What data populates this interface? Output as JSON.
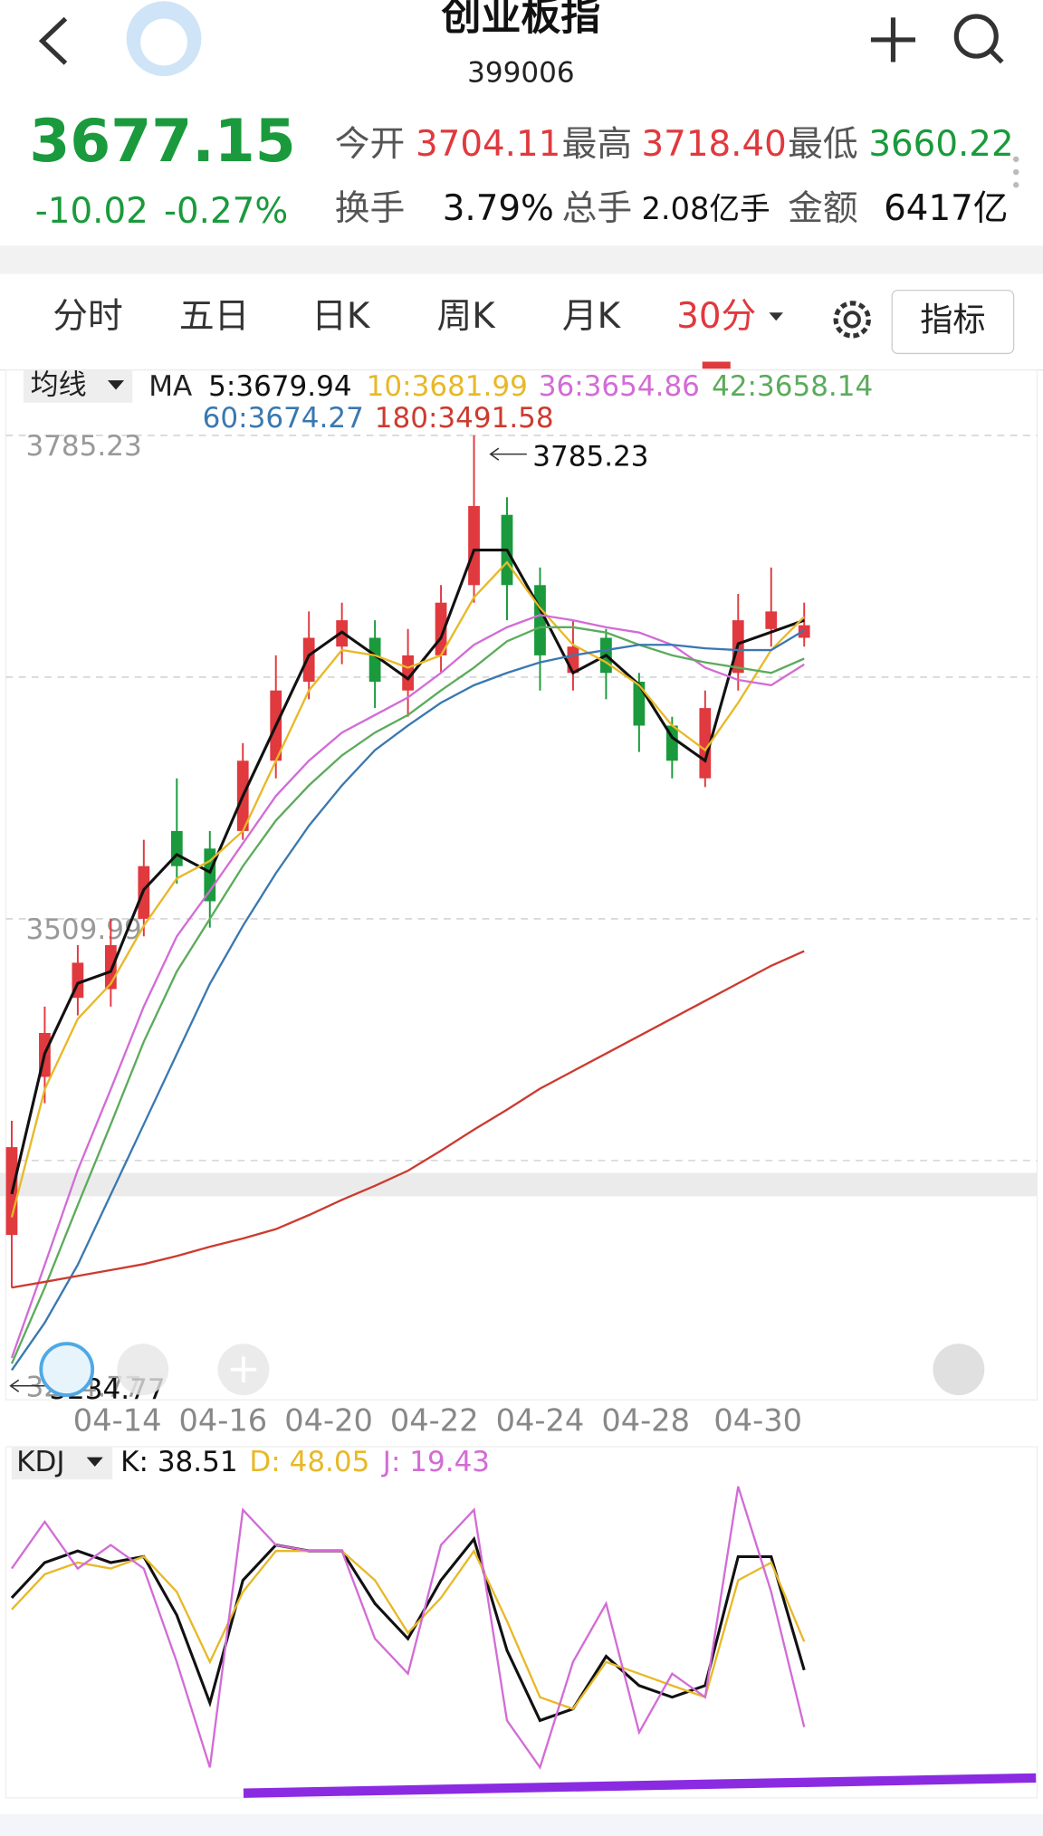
{
  "header": {
    "title": "创业板指",
    "code": "399006"
  },
  "quote": {
    "price": "3677.15",
    "change": "-10.02",
    "change_pct": "-0.27%",
    "color": "#1a9a3c",
    "stats": [
      {
        "label": "今开",
        "value": "3704.11",
        "color": "#e0393e"
      },
      {
        "label": "最高",
        "value": "3718.40",
        "color": "#e0393e"
      },
      {
        "label": "最低",
        "value": "3660.22",
        "color": "#1a9a3c"
      },
      {
        "label": "换手",
        "value": "3.79%",
        "color": "#111111"
      },
      {
        "label": "总手",
        "value": "2.08亿手",
        "color": "#111111"
      },
      {
        "label": "金额",
        "value": "6417亿",
        "color": "#111111"
      }
    ]
  },
  "tabs": [
    "分时",
    "五日",
    "日K",
    "周K",
    "月K",
    "30分"
  ],
  "active_tab": 5,
  "indicator_button": "指标",
  "chart_data": [
    {
      "type": "candlestick",
      "legend_title": "均线",
      "legend_prefix": "MA",
      "x": [
        0,
        5,
        10,
        15,
        20,
        25,
        30,
        35,
        40,
        45,
        50,
        55,
        60,
        65,
        70,
        75,
        80,
        85,
        90,
        95,
        100,
        105,
        110,
        115,
        120
      ],
      "xlim": [
        0,
        120
      ],
      "xticks": [
        {
          "value": 16,
          "label": "04-14"
        },
        {
          "value": 32,
          "label": "04-16"
        },
        {
          "value": 48,
          "label": "04-20"
        },
        {
          "value": 64,
          "label": "04-22"
        },
        {
          "value": 80,
          "label": "04-24"
        },
        {
          "value": 96,
          "label": "04-28"
        },
        {
          "value": 113,
          "label": "04-30"
        }
      ],
      "ylim": [
        3234.77,
        3785.23
      ],
      "yticks": [
        3785.23,
        3509.99,
        3234.77
      ],
      "grid": true,
      "high_label": "3785.23",
      "low_label": "3234.77",
      "candles": {
        "up_color": "#e0393e",
        "down_color": "#1a9a3c",
        "open": [
          3330,
          3420,
          3465,
          3470,
          3510,
          3560,
          3550,
          3560,
          3600,
          3645,
          3665,
          3670,
          3640,
          3660,
          3700,
          3740,
          3700,
          3650,
          3670,
          3645,
          3620,
          3590,
          3650,
          3675,
          3670
        ],
        "close": [
          3380,
          3445,
          3485,
          3495,
          3540,
          3540,
          3520,
          3600,
          3640,
          3670,
          3680,
          3645,
          3660,
          3690,
          3745,
          3700,
          3660,
          3665,
          3650,
          3620,
          3600,
          3630,
          3680,
          3685,
          3677.15
        ],
        "high": [
          3395,
          3460,
          3495,
          3510,
          3555,
          3590,
          3560,
          3610,
          3660,
          3685,
          3690,
          3680,
          3675,
          3700,
          3785.23,
          3750,
          3710,
          3680,
          3675,
          3650,
          3625,
          3640,
          3695,
          3710,
          3690
        ],
        "low": [
          3300,
          3405,
          3455,
          3460,
          3500,
          3530,
          3505,
          3555,
          3590,
          3635,
          3655,
          3630,
          3625,
          3650,
          3690,
          3680,
          3640,
          3640,
          3635,
          3605,
          3590,
          3585,
          3640,
          3665,
          3665
        ]
      },
      "series": [
        {
          "name": "5:3679.94",
          "color": "#111111",
          "values": [
            3353.3,
            3433.3,
            3473.3,
            3480,
            3526.6,
            3546.6,
            3536.6,
            3580,
            3620,
            3660,
            3673.3,
            3660,
            3646.6,
            3670,
            3720,
            3720,
            3686.6,
            3650,
            3660,
            3643.3,
            3613.3,
            3600,
            3666.6,
            3673.3,
            3679.94
          ]
        },
        {
          "name": "10:3681.99",
          "color": "#e8b827",
          "values": [
            3340,
            3413,
            3453,
            3473,
            3506,
            3533,
            3543,
            3560,
            3600,
            3640,
            3663,
            3660,
            3653,
            3660,
            3693,
            3713,
            3687,
            3666,
            3656,
            3643,
            3620,
            3606,
            3633,
            3663,
            3681.99
          ]
        },
        {
          "name": "36:3654.86",
          "color": "#d26cd6",
          "values": [
            3260,
            3313,
            3367,
            3413,
            3460,
            3500,
            3526,
            3553,
            3580,
            3600,
            3616,
            3626,
            3636,
            3650,
            3666,
            3676,
            3683,
            3680,
            3676,
            3673,
            3666,
            3653,
            3646,
            3643,
            3654.86
          ]
        },
        {
          "name": "42:3658.14",
          "color": "#5cab5c",
          "values": [
            3256.7,
            3300,
            3347,
            3393,
            3440,
            3480,
            3510,
            3540,
            3566,
            3586,
            3603,
            3616,
            3626,
            3640,
            3653,
            3668,
            3676,
            3676,
            3673,
            3666,
            3660,
            3656,
            3653,
            3650,
            3658.14
          ]
        },
        {
          "name": "60:3674.27",
          "color": "#3a78b0",
          "values": [
            3253,
            3280,
            3313,
            3353,
            3393,
            3433,
            3473,
            3506,
            3536,
            3563,
            3586,
            3606,
            3620,
            3633,
            3643,
            3650,
            3656,
            3660,
            3663,
            3666,
            3666,
            3664,
            3663,
            3663,
            3674.27
          ]
        },
        {
          "name": "180:3491.58",
          "color": "#cc3b2f",
          "values": [
            3300,
            3303.3,
            3306.7,
            3310,
            3313.4,
            3318,
            3323.3,
            3328,
            3333.3,
            3341.3,
            3350,
            3358,
            3366.6,
            3378,
            3390,
            3401.3,
            3413.3,
            3423.3,
            3433.3,
            3443.3,
            3453.3,
            3463.3,
            3473.3,
            3483.3,
            3491.58
          ]
        }
      ]
    },
    {
      "type": "line",
      "title": "KDJ",
      "x": [
        0,
        5,
        10,
        15,
        20,
        25,
        30,
        35,
        40,
        45,
        50,
        55,
        60,
        65,
        70,
        75,
        80,
        85,
        90,
        95,
        100,
        105,
        110,
        115,
        120
      ],
      "xlim": [
        0,
        120
      ],
      "ylim": [
        0,
        100
      ],
      "series": [
        {
          "name": "K: 38.51",
          "color": "#111111",
          "values": [
            62.7,
            74.5,
            78.4,
            74.5,
            76.5,
            56.9,
            27.5,
            68.6,
            80.4,
            78.4,
            78.4,
            60.8,
            49,
            68.6,
            82.4,
            45.1,
            21.6,
            25.5,
            43.1,
            33.3,
            29.4,
            33.3,
            76.5,
            76.5,
            38.51
          ]
        },
        {
          "name": "D: 48.05",
          "color": "#e8b827",
          "values": [
            58.8,
            70.6,
            74.5,
            72.5,
            76.5,
            64.7,
            41.2,
            64.7,
            78.4,
            78.4,
            78.4,
            68.6,
            51,
            62.7,
            78.4,
            54.9,
            29.4,
            25.5,
            41.2,
            37.3,
            33.3,
            29.4,
            68.6,
            74.5,
            48.05
          ]
        },
        {
          "name": "J: 19.43",
          "color": "#d26cd6",
          "values": [
            72.5,
            88.2,
            72.5,
            80.4,
            72.5,
            41.2,
            5.9,
            92.2,
            80.4,
            78.4,
            78.4,
            49,
            37.3,
            80.4,
            92.2,
            21.6,
            5.9,
            41.2,
            60.8,
            17.6,
            37.3,
            29.4,
            100,
            64.7,
            19.43
          ]
        }
      ]
    }
  ]
}
